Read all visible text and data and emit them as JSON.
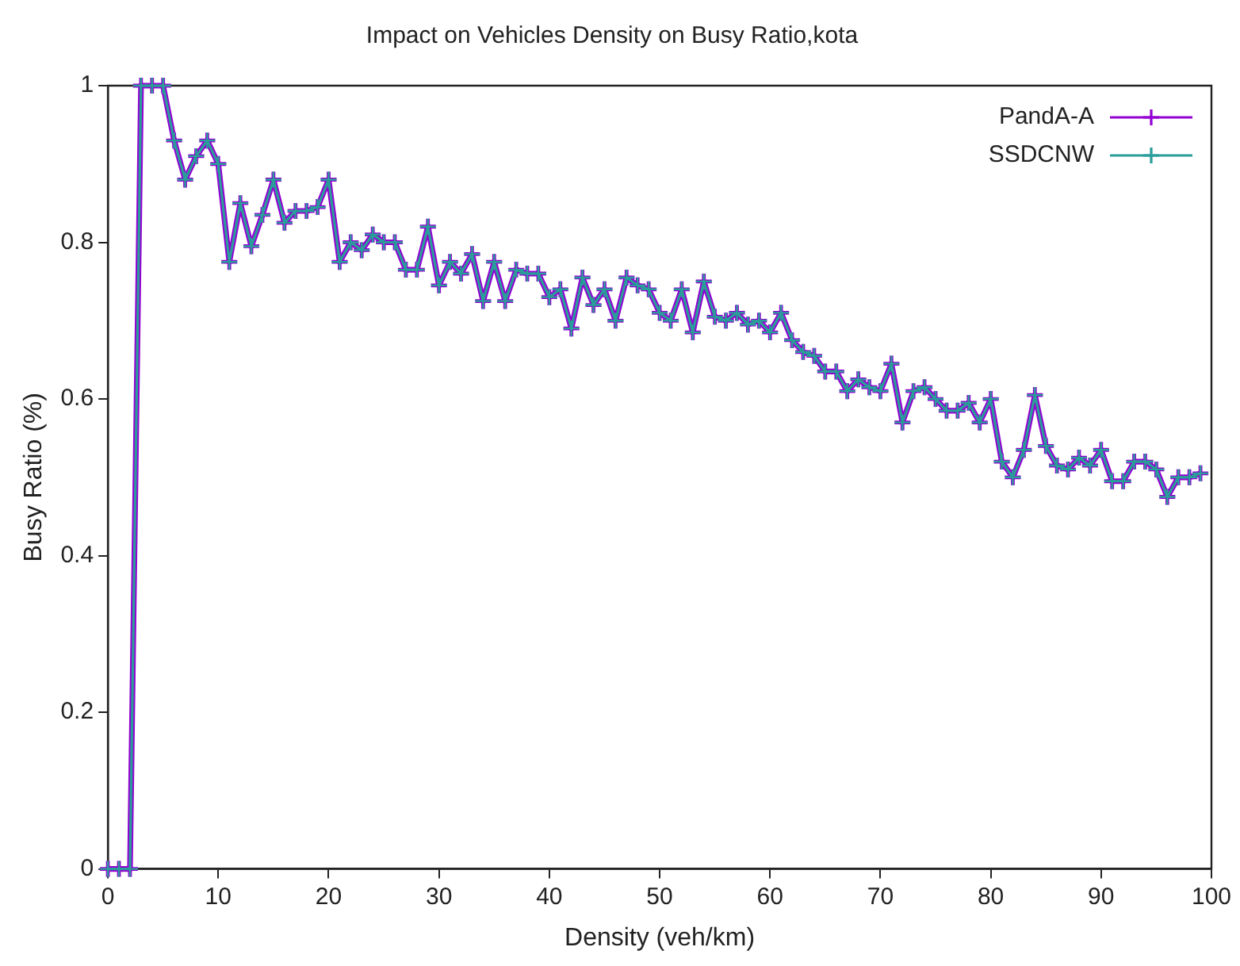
{
  "chart_data": {
    "type": "line",
    "title": "Impact on Vehicles Density on Busy Ratio,kota",
    "xlabel": "Density (veh/km)",
    "ylabel": "Busy Ratio (%)",
    "x": [
      0,
      1,
      2,
      3,
      4,
      5,
      6,
      7,
      8,
      9,
      10,
      11,
      12,
      13,
      14,
      15,
      16,
      17,
      18,
      19,
      20,
      21,
      22,
      23,
      24,
      25,
      26,
      27,
      28,
      29,
      30,
      31,
      32,
      33,
      34,
      35,
      36,
      37,
      38,
      39,
      40,
      41,
      42,
      43,
      44,
      45,
      46,
      47,
      48,
      49,
      50,
      51,
      52,
      53,
      54,
      55,
      56,
      57,
      58,
      59,
      60,
      61,
      62,
      63,
      64,
      65,
      66,
      67,
      68,
      69,
      70,
      71,
      72,
      73,
      74,
      75,
      76,
      77,
      78,
      79,
      80,
      81,
      82,
      83,
      84,
      85,
      86,
      87,
      88,
      89,
      90,
      91,
      92,
      93,
      94,
      95,
      96,
      97,
      98,
      99
    ],
    "series": [
      {
        "name": "PandA-A",
        "color": "#9400d3",
        "marker": "cross",
        "values": [
          0,
          0,
          0,
          1,
          1,
          1,
          0.93,
          0.88,
          0.91,
          0.93,
          0.9,
          0.775,
          0.85,
          0.795,
          0.835,
          0.88,
          0.825,
          0.84,
          0.84,
          0.845,
          0.88,
          0.775,
          0.8,
          0.79,
          0.81,
          0.8,
          0.8,
          0.765,
          0.765,
          0.82,
          0.745,
          0.775,
          0.76,
          0.785,
          0.725,
          0.775,
          0.725,
          0.765,
          0.76,
          0.76,
          0.73,
          0.74,
          0.69,
          0.755,
          0.72,
          0.74,
          0.7,
          0.755,
          0.745,
          0.74,
          0.71,
          0.7,
          0.74,
          0.685,
          0.75,
          0.705,
          0.7,
          0.71,
          0.695,
          0.7,
          0.685,
          0.71,
          0.675,
          0.66,
          0.655,
          0.635,
          0.635,
          0.61,
          0.625,
          0.615,
          0.61,
          0.645,
          0.57,
          0.61,
          0.615,
          0.6,
          0.585,
          0.585,
          0.595,
          0.57,
          0.6,
          0.52,
          0.5,
          0.535,
          0.605,
          0.54,
          0.515,
          0.51,
          0.525,
          0.515,
          0.535,
          0.495,
          0.495,
          0.52,
          0.52,
          0.51,
          0.475,
          0.5,
          0.5,
          0.505
        ]
      },
      {
        "name": "SSDCNW",
        "color": "#2a9d9a",
        "marker": "cross",
        "values": [
          0,
          0,
          0,
          1,
          1,
          1,
          0.93,
          0.88,
          0.91,
          0.93,
          0.9,
          0.775,
          0.85,
          0.795,
          0.835,
          0.88,
          0.825,
          0.84,
          0.84,
          0.845,
          0.88,
          0.775,
          0.8,
          0.79,
          0.81,
          0.8,
          0.8,
          0.765,
          0.765,
          0.82,
          0.745,
          0.775,
          0.76,
          0.785,
          0.725,
          0.775,
          0.725,
          0.765,
          0.76,
          0.76,
          0.73,
          0.74,
          0.69,
          0.755,
          0.72,
          0.74,
          0.7,
          0.755,
          0.745,
          0.74,
          0.71,
          0.7,
          0.74,
          0.685,
          0.75,
          0.705,
          0.7,
          0.71,
          0.695,
          0.7,
          0.685,
          0.71,
          0.675,
          0.66,
          0.655,
          0.635,
          0.635,
          0.61,
          0.625,
          0.615,
          0.61,
          0.645,
          0.57,
          0.61,
          0.615,
          0.6,
          0.585,
          0.585,
          0.595,
          0.57,
          0.6,
          0.52,
          0.5,
          0.535,
          0.605,
          0.54,
          0.515,
          0.51,
          0.525,
          0.515,
          0.535,
          0.495,
          0.495,
          0.52,
          0.52,
          0.51,
          0.475,
          0.5,
          0.5,
          0.505
        ]
      }
    ],
    "xlim": [
      0,
      100
    ],
    "xticks": [
      0,
      10,
      20,
      30,
      40,
      50,
      60,
      70,
      80,
      90,
      100
    ],
    "ylim": [
      0,
      1
    ],
    "yticks": [
      0,
      0.2,
      0.4,
      0.6,
      0.8,
      1
    ],
    "grid": false,
    "legend": "top right"
  }
}
